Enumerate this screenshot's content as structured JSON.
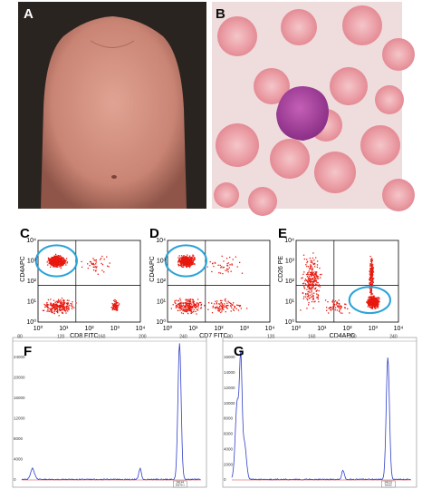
{
  "photos": [
    {
      "label": "A"
    },
    {
      "label": "B"
    }
  ],
  "flow": [
    {
      "label": "C",
      "y_axis": "CD4APC",
      "x_axis": "CD8 FITC",
      "x_ticks": [
        "10⁰",
        "10¹",
        "10²",
        "10³",
        "10⁴"
      ],
      "y_ticks": [
        "10⁰",
        "10¹",
        "10²",
        "10³",
        "10⁴"
      ]
    },
    {
      "label": "D",
      "y_axis": "CD4APC",
      "x_axis": "CD7 FITC",
      "x_ticks": [
        "10⁰",
        "10¹",
        "10²",
        "10³",
        "10⁴"
      ],
      "y_ticks": [
        "10⁰",
        "10¹",
        "10²",
        "10³",
        "10⁴"
      ]
    },
    {
      "label": "E",
      "y_axis": "CD26 PE",
      "x_axis": "CD4APC",
      "x_ticks": [
        "10⁰",
        "10¹",
        "10²",
        "10³",
        "10⁴"
      ],
      "y_ticks": [
        "10⁰",
        "10¹",
        "10²",
        "10³",
        "10⁴"
      ]
    }
  ],
  "electropherograms": [
    {
      "label": "F",
      "x_ticks": [
        "80",
        "120",
        "160",
        "200",
        "240"
      ],
      "y_ticks": [
        "24000",
        "20000",
        "16000",
        "12000",
        "8000",
        "4000",
        "0"
      ],
      "peak_box": [
        "240.44",
        "15270.1"
      ]
    },
    {
      "label": "G",
      "x_ticks": [
        "80",
        "120",
        "160",
        "200",
        "240"
      ],
      "y_ticks": [
        "16000",
        "14000",
        "12000",
        "10000",
        "8000",
        "6000",
        "4000",
        "2000",
        "0"
      ],
      "peak_box": [
        "240.51",
        "16212"
      ]
    }
  ]
}
